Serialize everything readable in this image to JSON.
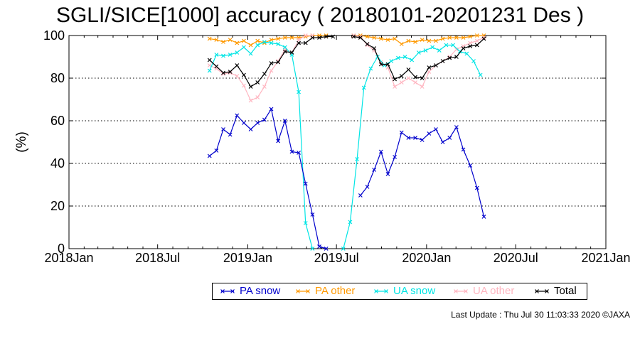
{
  "title": "SGLI/SICE[1000] accuracy ( 20180101-20201231 Des )",
  "footer": "Last Update : Thu Jul 30 11:03:33 2020  ©JAXA",
  "chart_data": {
    "type": "line",
    "title": "SGLI/SICE[1000] accuracy ( 20180101-20201231 Des )",
    "xlabel": "",
    "ylabel": "(%)",
    "xlim": [
      "2018-01-01",
      "2021-01-01"
    ],
    "ylim": [
      0,
      100
    ],
    "x_ticks": [
      "2018Jan",
      "2018Jul",
      "2019Jan",
      "2019Jul",
      "2020Jan",
      "2020Jul",
      "2021Jan"
    ],
    "y_ticks": [
      "0",
      "20",
      "40",
      "60",
      "80",
      "100"
    ],
    "grid": "horizontal dotted",
    "legend_position": "bottom",
    "series": [
      {
        "name": "PA snow",
        "color": "#0000cc",
        "points": [
          [
            "2018-10-15",
            43.5
          ],
          [
            "2018-10-29",
            46
          ],
          [
            "2018-11-12",
            56
          ],
          [
            "2018-11-26",
            53.5
          ],
          [
            "2018-12-10",
            62.5
          ],
          [
            "2018-12-24",
            59
          ],
          [
            "2019-01-07",
            56
          ],
          [
            "2019-01-21",
            59
          ],
          [
            "2019-02-04",
            60.5
          ],
          [
            "2019-02-18",
            65.5
          ],
          [
            "2019-03-04",
            50.5
          ],
          [
            "2019-03-18",
            60
          ],
          [
            "2019-04-01",
            45.5
          ],
          [
            "2019-04-15",
            45
          ],
          [
            "2019-04-29",
            30.5
          ],
          [
            "2019-05-13",
            16
          ],
          [
            "2019-05-27",
            1
          ],
          [
            "2019-06-10",
            0
          ],
          [
            "2019-08-19",
            25
          ],
          [
            "2019-09-02",
            29
          ],
          [
            "2019-09-16",
            37
          ],
          [
            "2019-09-30",
            45.5
          ],
          [
            "2019-10-14",
            35
          ],
          [
            "2019-10-28",
            43
          ],
          [
            "2019-11-11",
            54.5
          ],
          [
            "2019-11-25",
            52
          ],
          [
            "2019-12-09",
            52
          ],
          [
            "2019-12-23",
            51
          ],
          [
            "2020-01-06",
            54
          ],
          [
            "2020-01-20",
            56
          ],
          [
            "2020-02-03",
            50
          ],
          [
            "2020-02-17",
            52
          ],
          [
            "2020-03-02",
            57
          ],
          [
            "2020-03-16",
            46.5
          ],
          [
            "2020-03-30",
            39
          ],
          [
            "2020-04-13",
            28.5
          ],
          [
            "2020-04-27",
            15
          ]
        ]
      },
      {
        "name": "PA other",
        "color": "#ff9900",
        "points": [
          [
            "2018-10-15",
            98.5
          ],
          [
            "2018-10-29",
            98
          ],
          [
            "2018-11-12",
            97
          ],
          [
            "2018-11-26",
            98
          ],
          [
            "2018-12-10",
            96.5
          ],
          [
            "2018-12-24",
            97.5
          ],
          [
            "2019-01-07",
            95.5
          ],
          [
            "2019-01-21",
            97.5
          ],
          [
            "2019-02-04",
            96.5
          ],
          [
            "2019-02-18",
            98
          ],
          [
            "2019-03-04",
            98.5
          ],
          [
            "2019-03-18",
            99
          ],
          [
            "2019-04-01",
            99
          ],
          [
            "2019-04-15",
            99
          ],
          [
            "2019-04-29",
            99.5
          ],
          [
            "2019-05-13",
            100
          ],
          [
            "2019-05-27",
            100
          ],
          [
            "2019-06-10",
            100
          ],
          [
            "2019-08-05",
            100
          ],
          [
            "2019-08-19",
            100
          ],
          [
            "2019-09-02",
            99.5
          ],
          [
            "2019-09-16",
            99
          ],
          [
            "2019-09-30",
            98.5
          ],
          [
            "2019-10-14",
            98
          ],
          [
            "2019-10-28",
            98.5
          ],
          [
            "2019-11-11",
            96
          ],
          [
            "2019-11-25",
            97.5
          ],
          [
            "2019-12-09",
            97
          ],
          [
            "2019-12-23",
            98
          ],
          [
            "2020-01-06",
            97.5
          ],
          [
            "2020-01-20",
            97.5
          ],
          [
            "2020-02-03",
            98.5
          ],
          [
            "2020-02-17",
            99
          ],
          [
            "2020-03-02",
            99
          ],
          [
            "2020-03-16",
            99
          ],
          [
            "2020-03-30",
            99.5
          ],
          [
            "2020-04-13",
            100
          ],
          [
            "2020-04-27",
            100
          ]
        ]
      },
      {
        "name": "UA snow",
        "color": "#00e5e5",
        "points": [
          [
            "2018-10-15",
            83.5
          ],
          [
            "2018-10-29",
            91
          ],
          [
            "2018-11-12",
            90.5
          ],
          [
            "2018-11-26",
            91
          ],
          [
            "2018-12-10",
            92
          ],
          [
            "2018-12-24",
            94.5
          ],
          [
            "2019-01-07",
            91.5
          ],
          [
            "2019-01-21",
            95.5
          ],
          [
            "2019-02-04",
            97
          ],
          [
            "2019-02-18",
            96.5
          ],
          [
            "2019-03-04",
            96
          ],
          [
            "2019-03-18",
            94.5
          ],
          [
            "2019-04-01",
            91
          ],
          [
            "2019-04-15",
            73.5
          ],
          [
            "2019-04-29",
            12
          ],
          [
            "2019-05-13",
            0
          ],
          [
            "2019-07-15",
            0
          ],
          [
            "2019-07-29",
            12.5
          ],
          [
            "2019-08-12",
            42
          ],
          [
            "2019-08-26",
            75.5
          ],
          [
            "2019-09-09",
            84.5
          ],
          [
            "2019-09-23",
            90
          ],
          [
            "2019-10-07",
            86
          ],
          [
            "2019-10-21",
            88
          ],
          [
            "2019-11-04",
            89.5
          ],
          [
            "2019-11-18",
            90
          ],
          [
            "2019-12-02",
            88.5
          ],
          [
            "2019-12-16",
            92
          ],
          [
            "2019-12-30",
            93
          ],
          [
            "2020-01-13",
            94.5
          ],
          [
            "2020-01-27",
            93
          ],
          [
            "2020-02-10",
            95.5
          ],
          [
            "2020-02-24",
            95.5
          ],
          [
            "2020-03-09",
            92.5
          ],
          [
            "2020-03-23",
            91.5
          ],
          [
            "2020-04-06",
            88
          ],
          [
            "2020-04-20",
            81.5
          ]
        ]
      },
      {
        "name": "UA other",
        "color": "#ffb6c1",
        "points": [
          [
            "2018-10-15",
            86
          ],
          [
            "2018-10-29",
            84.5
          ],
          [
            "2018-11-12",
            82
          ],
          [
            "2018-11-26",
            82.5
          ],
          [
            "2018-12-10",
            81
          ],
          [
            "2018-12-24",
            76.5
          ],
          [
            "2019-01-07",
            69.5
          ],
          [
            "2019-01-21",
            71
          ],
          [
            "2019-02-04",
            76
          ],
          [
            "2019-02-18",
            83.5
          ],
          [
            "2019-03-04",
            88
          ],
          [
            "2019-03-18",
            93.5
          ],
          [
            "2019-04-01",
            92
          ],
          [
            "2019-04-15",
            98
          ],
          [
            "2019-04-29",
            100
          ],
          [
            "2019-05-13",
            100
          ],
          [
            "2019-08-05",
            100
          ],
          [
            "2019-08-19",
            99.5
          ],
          [
            "2019-09-02",
            95.5
          ],
          [
            "2019-09-16",
            93
          ],
          [
            "2019-09-30",
            87.5
          ],
          [
            "2019-10-14",
            85
          ],
          [
            "2019-10-28",
            76
          ],
          [
            "2019-11-11",
            78
          ],
          [
            "2019-11-25",
            80
          ],
          [
            "2019-12-09",
            78
          ],
          [
            "2019-12-23",
            76
          ],
          [
            "2020-01-06",
            83
          ],
          [
            "2020-01-20",
            86
          ],
          [
            "2020-02-03",
            88
          ],
          [
            "2020-02-17",
            90
          ],
          [
            "2020-03-02",
            93.5
          ],
          [
            "2020-03-16",
            95
          ],
          [
            "2020-03-30",
            96.5
          ],
          [
            "2020-04-13",
            97.5
          ],
          [
            "2020-04-27",
            99
          ]
        ]
      },
      {
        "name": "Total",
        "color": "#000000",
        "points": [
          [
            "2018-10-15",
            88.5
          ],
          [
            "2018-10-29",
            85.5
          ],
          [
            "2018-11-12",
            82.5
          ],
          [
            "2018-11-26",
            83
          ],
          [
            "2018-12-10",
            86
          ],
          [
            "2018-12-24",
            81.5
          ],
          [
            "2019-01-07",
            76
          ],
          [
            "2019-01-21",
            78
          ],
          [
            "2019-02-04",
            82
          ],
          [
            "2019-02-18",
            87
          ],
          [
            "2019-03-04",
            87.5
          ],
          [
            "2019-03-18",
            92.5
          ],
          [
            "2019-04-01",
            92
          ],
          [
            "2019-04-15",
            96.5
          ],
          [
            "2019-04-29",
            96.5
          ],
          [
            "2019-05-13",
            99
          ],
          [
            "2019-05-27",
            99
          ],
          [
            "2019-06-10",
            99.5
          ],
          [
            "2019-06-24",
            99.5
          ],
          [
            "2019-08-05",
            99.5
          ],
          [
            "2019-08-19",
            99
          ],
          [
            "2019-09-02",
            96
          ],
          [
            "2019-09-16",
            94
          ],
          [
            "2019-09-30",
            86.5
          ],
          [
            "2019-10-14",
            86.5
          ],
          [
            "2019-10-28",
            79.5
          ],
          [
            "2019-11-11",
            81
          ],
          [
            "2019-11-25",
            84
          ],
          [
            "2019-12-09",
            80.5
          ],
          [
            "2019-12-23",
            80
          ],
          [
            "2020-01-06",
            85
          ],
          [
            "2020-01-20",
            86
          ],
          [
            "2020-02-03",
            88
          ],
          [
            "2020-02-17",
            89.5
          ],
          [
            "2020-03-02",
            90
          ],
          [
            "2020-03-16",
            94
          ],
          [
            "2020-03-30",
            95
          ],
          [
            "2020-04-13",
            95.5
          ],
          [
            "2020-04-27",
            98.5
          ]
        ]
      }
    ]
  }
}
